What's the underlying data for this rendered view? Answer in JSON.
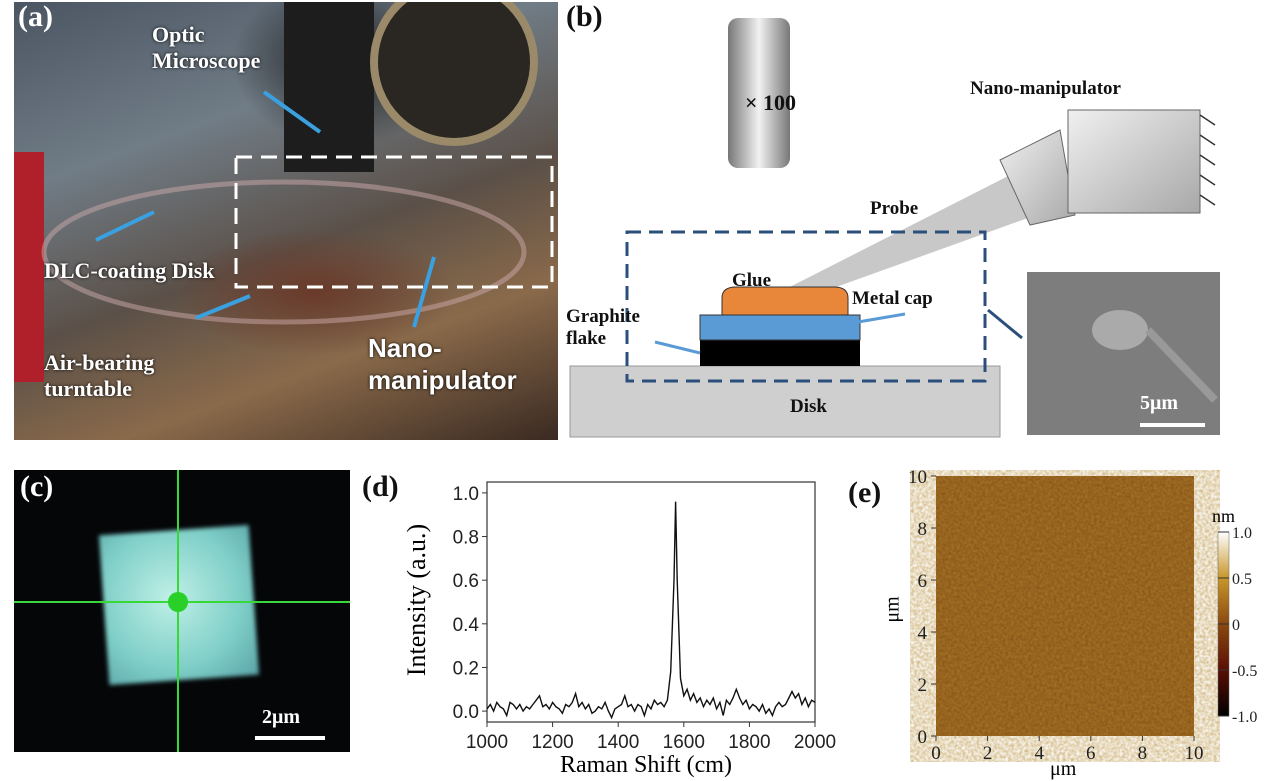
{
  "panel_a": {
    "label": "(a)",
    "optic_microscope": "Optic Microscope",
    "dlc_disk": "DLC-coating Disk",
    "turntable": "Air-bearing turntable",
    "nano_manipulator": "Nano-manipulator"
  },
  "panel_b": {
    "label": "(b)",
    "objective": "× 100",
    "nano_manipulator": "Nano-manipulator",
    "probe": "Probe",
    "glue": "Glue",
    "metal_cap": "Metal cap",
    "graphite_flake": "Graphite flake",
    "disk": "Disk",
    "sem_scale": "5μm",
    "colors": {
      "glue": "#e8873a",
      "metal_cap": "#5b9bd5",
      "graphite": "#000000",
      "frame": "#2b4f7a",
      "arrow": "#5b9bd5"
    }
  },
  "panel_c": {
    "label": "(c)",
    "scale": "2μm"
  },
  "chart_data": [
    {
      "panel": "(d)",
      "type": "line",
      "xlabel": "Raman Shift (cm)",
      "ylabel": "Intensity (a.u.)",
      "xlim": [
        1000,
        2000
      ],
      "ylim": [
        -0.05,
        1.05
      ],
      "xticks": [
        "1000",
        "1200",
        "1400",
        "1600",
        "1800",
        "2000"
      ],
      "yticks": [
        "0.0",
        "0.2",
        "0.4",
        "0.6",
        "0.8",
        "1.0"
      ],
      "x": [
        1000,
        1010,
        1020,
        1030,
        1040,
        1050,
        1060,
        1070,
        1080,
        1090,
        1100,
        1110,
        1120,
        1130,
        1140,
        1150,
        1160,
        1170,
        1180,
        1190,
        1200,
        1210,
        1220,
        1230,
        1240,
        1250,
        1260,
        1270,
        1280,
        1290,
        1300,
        1310,
        1320,
        1330,
        1340,
        1350,
        1360,
        1370,
        1380,
        1390,
        1400,
        1410,
        1420,
        1430,
        1440,
        1450,
        1460,
        1470,
        1480,
        1490,
        1500,
        1510,
        1520,
        1530,
        1540,
        1550,
        1560,
        1570,
        1575,
        1580,
        1590,
        1600,
        1610,
        1620,
        1630,
        1640,
        1650,
        1660,
        1670,
        1680,
        1690,
        1700,
        1710,
        1720,
        1730,
        1740,
        1750,
        1760,
        1770,
        1780,
        1790,
        1800,
        1810,
        1820,
        1830,
        1840,
        1850,
        1860,
        1870,
        1880,
        1890,
        1900,
        1910,
        1920,
        1930,
        1940,
        1950,
        1960,
        1970,
        1980,
        1990,
        2000
      ],
      "y": [
        0.01,
        0.03,
        0.0,
        0.04,
        0.02,
        0.01,
        -0.02,
        0.04,
        0.03,
        0.01,
        0.03,
        0.0,
        0.02,
        0.01,
        0.03,
        0.05,
        0.07,
        0.02,
        0.03,
        0.01,
        0.04,
        0.02,
        0.01,
        -0.01,
        0.03,
        0.02,
        0.04,
        0.08,
        0.02,
        0.04,
        0.01,
        0.03,
        -0.01,
        0.0,
        0.02,
        0.01,
        0.04,
        0.0,
        -0.03,
        0.01,
        0.02,
        0.03,
        0.07,
        0.02,
        0.03,
        0.0,
        0.03,
        0.02,
        -0.02,
        0.03,
        0.01,
        0.05,
        0.03,
        0.04,
        0.02,
        0.05,
        0.18,
        0.6,
        0.96,
        0.6,
        0.15,
        0.07,
        0.1,
        0.05,
        0.08,
        0.04,
        0.06,
        0.02,
        0.05,
        0.03,
        0.06,
        0.01,
        0.04,
        -0.02,
        0.05,
        0.03,
        0.06,
        0.1,
        0.06,
        0.03,
        0.05,
        0.01,
        0.03,
        0.02,
        0.0,
        0.03,
        -0.01,
        0.01,
        -0.02,
        0.02,
        0.04,
        0.02,
        0.03,
        0.06,
        0.09,
        0.06,
        0.08,
        0.03,
        0.06,
        0.02,
        0.05,
        0.04
      ],
      "color": "#111111",
      "grid": false
    },
    {
      "panel": "(e)",
      "type": "heatmap",
      "xlabel": "μm",
      "ylabel": "μm",
      "xlim": [
        0,
        10
      ],
      "ylim": [
        0,
        10
      ],
      "xticks": [
        "0",
        "2",
        "4",
        "6",
        "8",
        "10"
      ],
      "yticks": [
        "0",
        "2",
        "4",
        "6",
        "8",
        "10"
      ],
      "colorbar": {
        "unit": "nm",
        "ticks": [
          "1.0",
          "0.5",
          "0",
          "-0.5",
          "-1.0"
        ],
        "range": [
          -1.0,
          1.0
        ],
        "colors": [
          "#000000",
          "#5a0f05",
          "#8a4a10",
          "#c8962a",
          "#ffffff"
        ]
      },
      "dominant_color": "#8a5418"
    }
  ]
}
